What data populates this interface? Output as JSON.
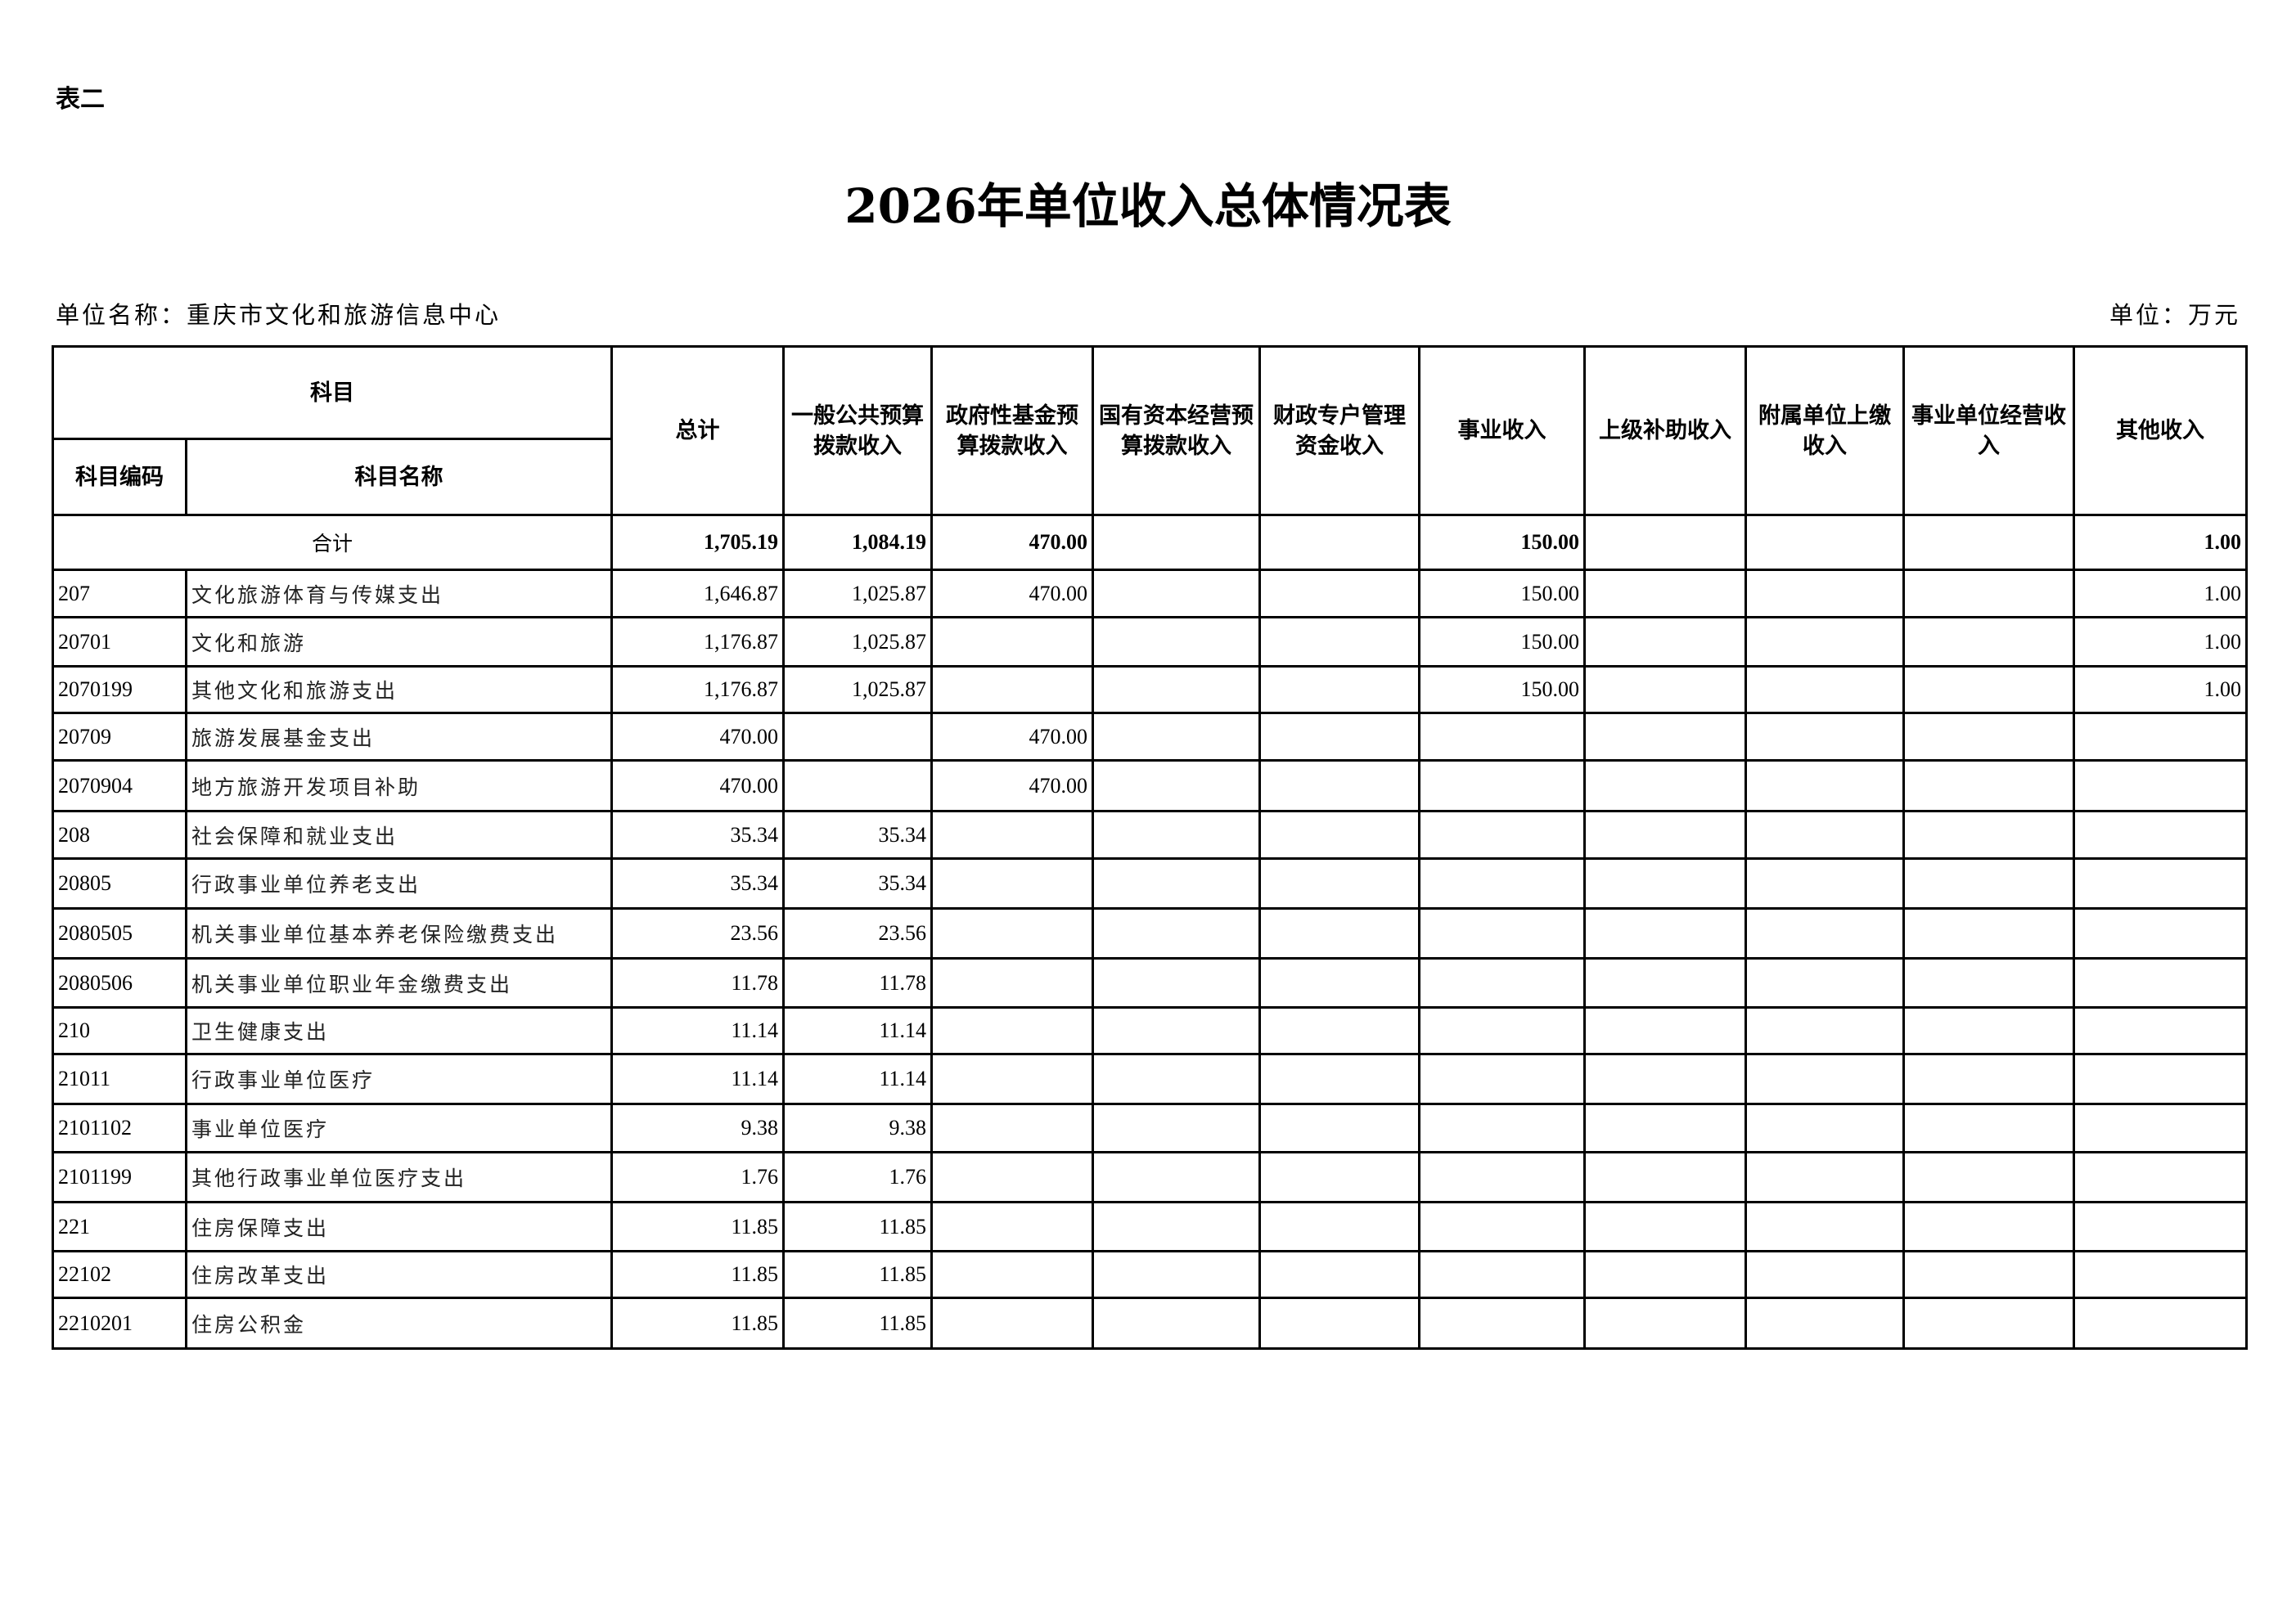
{
  "header": {
    "table_no": "表二",
    "title": "2026年单位收入总体情况表",
    "unit_name": "单位名称：重庆市文化和旅游信息中心",
    "unit": "单位：万元"
  },
  "columns": {
    "subject": "科目",
    "code": "科目编码",
    "name": "科目名称",
    "values": [
      "总计",
      "一般公共预算拨款收入",
      "政府性基金预算拨款收入",
      "国有资本经营预算拨款收入",
      "财政专户管理资金收入",
      "事业收入",
      "上级补助收入",
      "附属单位上缴收入",
      "事业单位经营收入",
      "其他收入"
    ]
  },
  "total": {
    "label": "合计",
    "values": [
      "1,705.19",
      "1,084.19",
      "470.00",
      "",
      "",
      "150.00",
      "",
      "",
      "",
      "1.00"
    ]
  },
  "rows": [
    {
      "code": "207",
      "name": "文化旅游体育与传媒支出",
      "values": [
        "1,646.87",
        "1,025.87",
        "470.00",
        "",
        "",
        "150.00",
        "",
        "",
        "",
        "1.00"
      ]
    },
    {
      "code": "20701",
      "name": "文化和旅游",
      "values": [
        "1,176.87",
        "1,025.87",
        "",
        "",
        "",
        "150.00",
        "",
        "",
        "",
        "1.00"
      ]
    },
    {
      "code": "2070199",
      "name": "其他文化和旅游支出",
      "values": [
        "1,176.87",
        "1,025.87",
        "",
        "",
        "",
        "150.00",
        "",
        "",
        "",
        "1.00"
      ]
    },
    {
      "code": "20709",
      "name": "旅游发展基金支出",
      "values": [
        "470.00",
        "",
        "470.00",
        "",
        "",
        "",
        "",
        "",
        "",
        ""
      ]
    },
    {
      "code": "2070904",
      "name": "地方旅游开发项目补助",
      "values": [
        "470.00",
        "",
        "470.00",
        "",
        "",
        "",
        "",
        "",
        "",
        ""
      ]
    },
    {
      "code": "208",
      "name": "社会保障和就业支出",
      "values": [
        "35.34",
        "35.34",
        "",
        "",
        "",
        "",
        "",
        "",
        "",
        ""
      ]
    },
    {
      "code": "20805",
      "name": "行政事业单位养老支出",
      "values": [
        "35.34",
        "35.34",
        "",
        "",
        "",
        "",
        "",
        "",
        "",
        ""
      ]
    },
    {
      "code": "2080505",
      "name": "机关事业单位基本养老保险缴费支出",
      "values": [
        "23.56",
        "23.56",
        "",
        "",
        "",
        "",
        "",
        "",
        "",
        ""
      ]
    },
    {
      "code": "2080506",
      "name": "机关事业单位职业年金缴费支出",
      "values": [
        "11.78",
        "11.78",
        "",
        "",
        "",
        "",
        "",
        "",
        "",
        ""
      ]
    },
    {
      "code": "210",
      "name": "卫生健康支出",
      "values": [
        "11.14",
        "11.14",
        "",
        "",
        "",
        "",
        "",
        "",
        "",
        ""
      ]
    },
    {
      "code": "21011",
      "name": "行政事业单位医疗",
      "values": [
        "11.14",
        "11.14",
        "",
        "",
        "",
        "",
        "",
        "",
        "",
        ""
      ]
    },
    {
      "code": "2101102",
      "name": "事业单位医疗",
      "values": [
        "9.38",
        "9.38",
        "",
        "",
        "",
        "",
        "",
        "",
        "",
        ""
      ]
    },
    {
      "code": "2101199",
      "name": "其他行政事业单位医疗支出",
      "values": [
        "1.76",
        "1.76",
        "",
        "",
        "",
        "",
        "",
        "",
        "",
        ""
      ]
    },
    {
      "code": "221",
      "name": "住房保障支出",
      "values": [
        "11.85",
        "11.85",
        "",
        "",
        "",
        "",
        "",
        "",
        "",
        ""
      ]
    },
    {
      "code": "22102",
      "name": "住房改革支出",
      "values": [
        "11.85",
        "11.85",
        "",
        "",
        "",
        "",
        "",
        "",
        "",
        ""
      ]
    },
    {
      "code": "2210201",
      "name": "住房公积金",
      "values": [
        "11.85",
        "11.85",
        "",
        "",
        "",
        "",
        "",
        "",
        "",
        ""
      ]
    }
  ]
}
